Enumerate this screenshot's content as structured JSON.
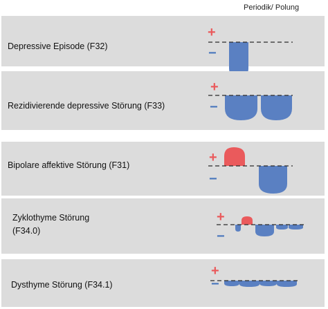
{
  "header": {
    "title": "Periodik/ Polung"
  },
  "legend": {
    "plus": "+",
    "minus": "−"
  },
  "colors": {
    "positive": "#ea5a5c",
    "negative": "#5a80c2",
    "panel": "#dcdcdc",
    "baseline": "#2a2a2a"
  },
  "rows": [
    {
      "label_lines": [
        "Depressive Episode (F32)"
      ]
    },
    {
      "label_lines": [
        "Rezidivierende depressive Störung (F33)"
      ]
    },
    {
      "label_lines": [
        "Bipolare affektive Störung (F31)"
      ]
    },
    {
      "label_lines": [
        "Zyklothyme Störung",
        "(F34.0)"
      ]
    },
    {
      "label_lines": [
        "Dysthyme Störung (F34.1)"
      ]
    }
  ]
}
